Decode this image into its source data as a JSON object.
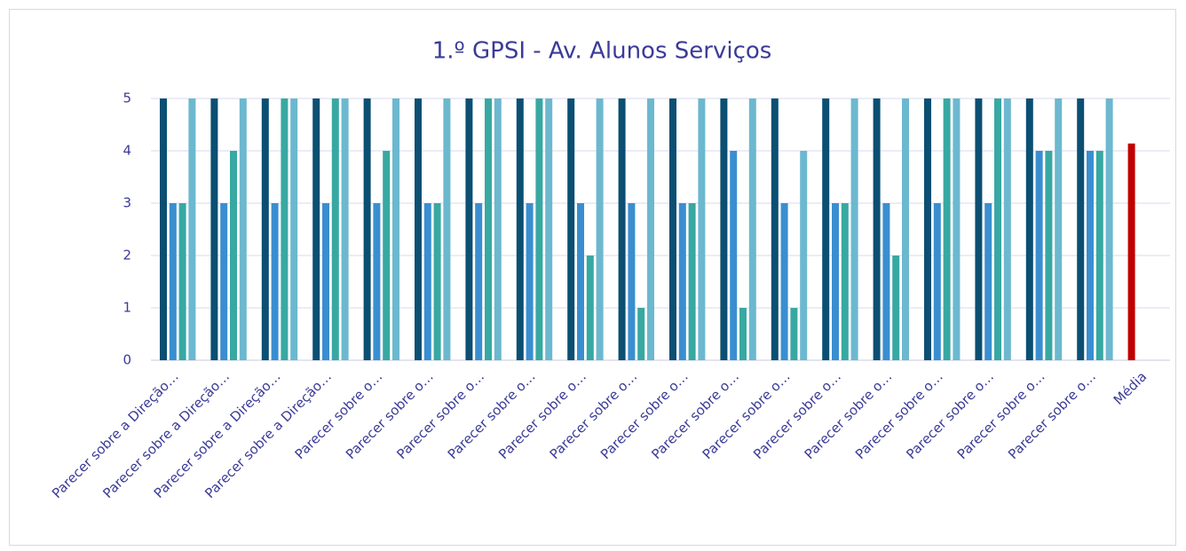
{
  "chart_data": {
    "type": "bar",
    "title": "1.º GPSI - Av. Alunos Serviços",
    "categories": [
      "Parecer sobre a Direção…",
      "Parecer sobre a Direção…",
      "Parecer sobre a Direção…",
      "Parecer sobre a Direção…",
      "Parecer sobre o…",
      "Parecer sobre o…",
      "Parecer sobre o…",
      "Parecer sobre o…",
      "Parecer sobre o…",
      "Parecer sobre o…",
      "Parecer sobre o…",
      "Parecer sobre o…",
      "Parecer sobre o…",
      "Parecer sobre o…",
      "Parecer sobre o…",
      "Parecer sobre o…",
      "Parecer sobre o…",
      "Parecer sobre o…",
      "Parecer sobre o…",
      "Média"
    ],
    "series": [
      {
        "color": "#0b4f72",
        "values": [
          5,
          5,
          5,
          5,
          5,
          5,
          5,
          5,
          5,
          5,
          5,
          5,
          5,
          5,
          5,
          5,
          5,
          5,
          5,
          null
        ]
      },
      {
        "color": "#3a8ed0",
        "values": [
          3,
          3,
          3,
          3,
          3,
          3,
          3,
          3,
          3,
          3,
          3,
          4,
          3,
          3,
          3,
          3,
          3,
          4,
          4,
          null
        ]
      },
      {
        "color": "#38a8a2",
        "values": [
          3,
          4,
          5,
          5,
          4,
          3,
          5,
          5,
          2,
          1,
          3,
          1,
          1,
          3,
          2,
          5,
          5,
          4,
          4,
          null
        ]
      },
      {
        "color": "#6cb8cf",
        "values": [
          5,
          5,
          5,
          5,
          5,
          5,
          5,
          5,
          5,
          5,
          5,
          5,
          4,
          5,
          5,
          5,
          5,
          5,
          5,
          null
        ]
      },
      {
        "color": "#c00000",
        "values": [
          null,
          null,
          null,
          null,
          null,
          null,
          null,
          null,
          null,
          null,
          null,
          null,
          null,
          null,
          null,
          null,
          null,
          null,
          null,
          4.14
        ]
      }
    ],
    "ylim": [
      0,
      5
    ],
    "yticks": [
      0,
      1,
      2,
      3,
      4,
      5
    ],
    "grid": true
  }
}
